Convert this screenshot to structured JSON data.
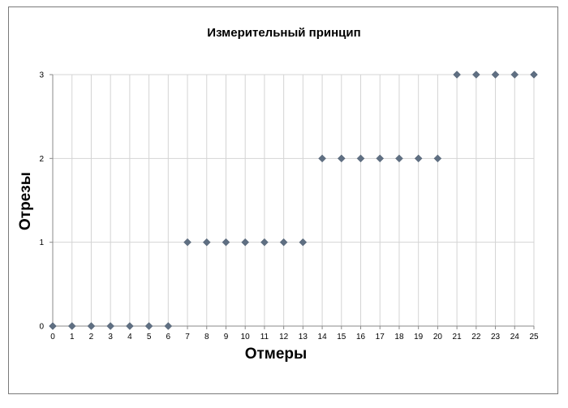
{
  "chart_data": {
    "type": "scatter",
    "title": "Измерительный принцип",
    "xlabel": "Отмеры",
    "ylabel": "Отрезы",
    "xlim": [
      0,
      25
    ],
    "ylim": [
      0,
      3
    ],
    "xticks": [
      0,
      1,
      2,
      3,
      4,
      5,
      6,
      7,
      8,
      9,
      10,
      11,
      12,
      13,
      14,
      15,
      16,
      17,
      18,
      19,
      20,
      21,
      22,
      23,
      24,
      25
    ],
    "yticks": [
      0,
      1,
      2,
      3
    ],
    "grid": true,
    "legend": "none",
    "marker": "diamond",
    "marker_color": "#5f6f82",
    "series": [
      {
        "x": [
          0,
          1,
          2,
          3,
          4,
          5,
          6,
          7,
          8,
          9,
          10,
          11,
          12,
          13,
          14,
          15,
          16,
          17,
          18,
          19,
          20,
          21,
          22,
          23,
          24,
          25
        ],
        "y": [
          0,
          0,
          0,
          0,
          0,
          0,
          0,
          1,
          1,
          1,
          1,
          1,
          1,
          1,
          2,
          2,
          2,
          2,
          2,
          2,
          2,
          3,
          3,
          3,
          3,
          3
        ]
      }
    ]
  }
}
